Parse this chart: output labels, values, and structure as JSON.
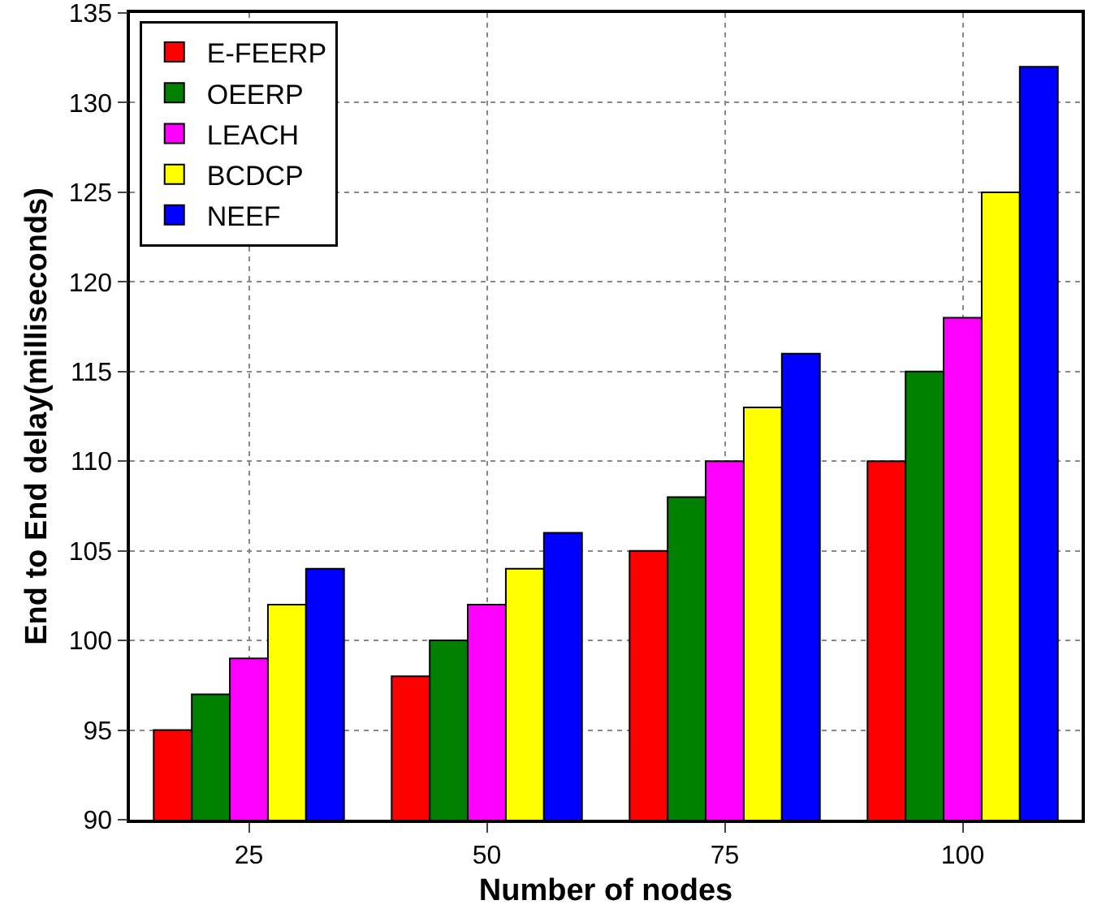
{
  "chart_data": {
    "type": "bar",
    "xlabel": "Number of nodes",
    "ylabel": "End to End delay(milliseconds)",
    "categories": [
      "25",
      "50",
      "75",
      "100"
    ],
    "series": [
      {
        "name": "E-FEERP",
        "color": "#ff0000",
        "values": [
          95,
          98,
          105,
          110
        ]
      },
      {
        "name": "OEERP",
        "color": "#007f00",
        "values": [
          97,
          100,
          108,
          115
        ]
      },
      {
        "name": "LEACH",
        "color": "#ff00ff",
        "values": [
          99,
          102,
          110,
          118
        ]
      },
      {
        "name": "BCDCP",
        "color": "#ffff00",
        "values": [
          102,
          104,
          113,
          125
        ]
      },
      {
        "name": "NEEF",
        "color": "#0000ff",
        "values": [
          104,
          106,
          116,
          132
        ]
      }
    ],
    "ylim": [
      90,
      135
    ],
    "yticks": [
      90,
      95,
      100,
      105,
      110,
      115,
      120,
      125,
      130,
      135
    ],
    "grid": true,
    "legend": "top left"
  }
}
